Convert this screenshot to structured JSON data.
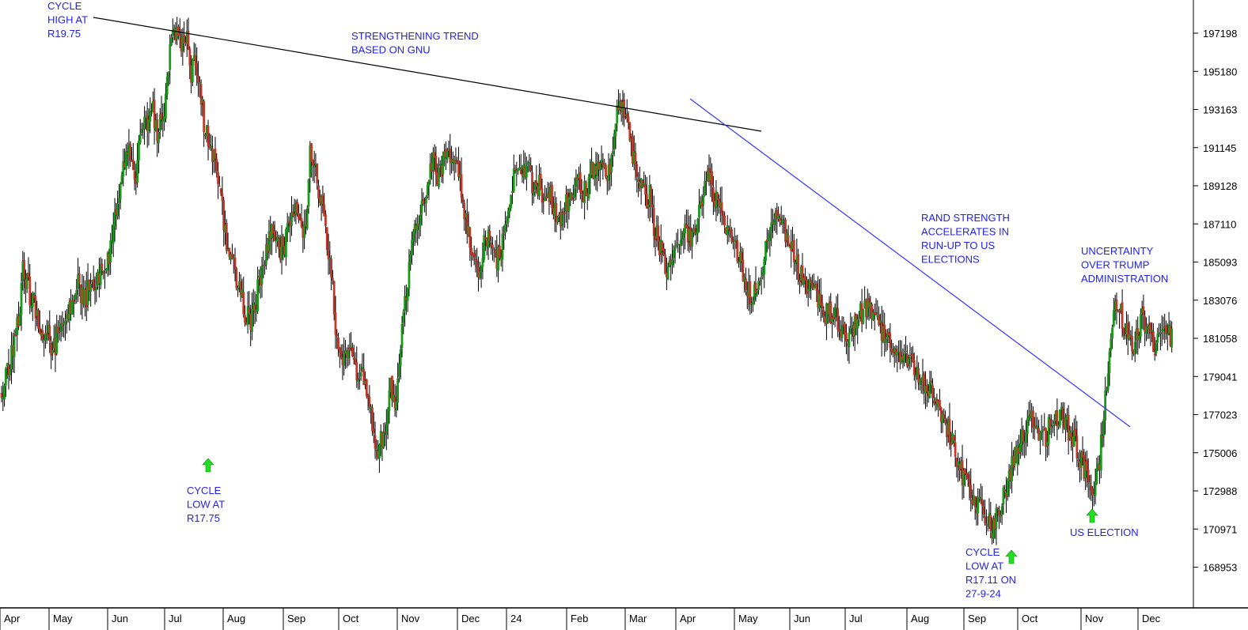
{
  "chart_data": {
    "type": "candlestick",
    "title": "",
    "xlabel": "",
    "ylabel": "",
    "ylim": [
      167900,
      198300
    ],
    "y_ticks": [
      "197198",
      "195180",
      "193163",
      "191145",
      "189128",
      "187110",
      "185093",
      "183076",
      "181058",
      "179041",
      "177023",
      "175006",
      "172988",
      "170971",
      "168953"
    ],
    "x_ticks": [
      "Apr",
      "May",
      "Jun",
      "Jul",
      "Aug",
      "Sep",
      "Oct",
      "Nov",
      "Dec",
      "24",
      "Feb",
      "Mar",
      "Apr",
      "May",
      "Jun",
      "Jul",
      "Aug",
      "Sep",
      "Oct",
      "Nov",
      "Dec"
    ],
    "grid": false,
    "colors": {
      "up": "#1a9a1a",
      "down": "#c0392b",
      "wick": "#000000",
      "annotation": "#2222ee",
      "arrow": "#22dd22",
      "trend_black": "#000000",
      "trend_blue": "#3333ff"
    },
    "price_path": [
      [
        0,
        178200
      ],
      [
        3,
        179200
      ],
      [
        6,
        180000
      ],
      [
        8,
        180300
      ],
      [
        10,
        181500
      ],
      [
        12,
        182000
      ],
      [
        15,
        184700
      ],
      [
        18,
        184000
      ],
      [
        21,
        183000
      ],
      [
        24,
        182400
      ],
      [
        27,
        181000
      ],
      [
        30,
        180600
      ],
      [
        33,
        181200
      ],
      [
        35,
        180300
      ],
      [
        38,
        180800
      ],
      [
        41,
        181800
      ],
      [
        44,
        182400
      ],
      [
        47,
        182300
      ],
      [
        50,
        183300
      ],
      [
        53,
        184100
      ],
      [
        56,
        183500
      ],
      [
        59,
        183100
      ],
      [
        62,
        183800
      ],
      [
        65,
        183900
      ],
      [
        68,
        184000
      ],
      [
        71,
        184500
      ],
      [
        74,
        184900
      ],
      [
        77,
        185600
      ],
      [
        80,
        187500
      ],
      [
        83,
        189100
      ],
      [
        86,
        190200
      ],
      [
        89,
        191000
      ],
      [
        92,
        190000
      ],
      [
        95,
        189800
      ],
      [
        98,
        191600
      ],
      [
        101,
        192400
      ],
      [
        104,
        192600
      ],
      [
        107,
        193200
      ],
      [
        110,
        192000
      ],
      [
        113,
        192600
      ],
      [
        116,
        193500
      ],
      [
        119,
        196400
      ],
      [
        122,
        197600
      ],
      [
        125,
        197000
      ],
      [
        128,
        196500
      ],
      [
        131,
        196700
      ],
      [
        134,
        195100
      ],
      [
        137,
        195900
      ],
      [
        140,
        194300
      ],
      [
        143,
        192500
      ],
      [
        146,
        191500
      ],
      [
        149,
        191000
      ],
      [
        152,
        189900
      ],
      [
        155,
        188500
      ],
      [
        158,
        186700
      ],
      [
        161,
        185400
      ],
      [
        164,
        185000
      ],
      [
        167,
        183800
      ],
      [
        170,
        183000
      ],
      [
        173,
        182300
      ],
      [
        176,
        181800
      ],
      [
        179,
        182800
      ],
      [
        182,
        184000
      ],
      [
        185,
        185000
      ],
      [
        188,
        186000
      ],
      [
        191,
        187000
      ],
      [
        194,
        186400
      ],
      [
        197,
        185700
      ],
      [
        200,
        186000
      ],
      [
        203,
        186900
      ],
      [
        206,
        187600
      ],
      [
        209,
        188000
      ],
      [
        212,
        186800
      ],
      [
        215,
        186500
      ],
      [
        218,
        191200
      ],
      [
        221,
        190300
      ],
      [
        224,
        189000
      ],
      [
        227,
        188000
      ],
      [
        230,
        186200
      ],
      [
        233,
        184900
      ],
      [
        236,
        181900
      ],
      [
        239,
        180200
      ],
      [
        242,
        179900
      ],
      [
        245,
        180500
      ],
      [
        248,
        180000
      ],
      [
        251,
        179000
      ],
      [
        254,
        179300
      ],
      [
        257,
        178600
      ],
      [
        260,
        177400
      ],
      [
        263,
        176100
      ],
      [
        266,
        175300
      ],
      [
        269,
        175700
      ],
      [
        272,
        177000
      ],
      [
        275,
        178500
      ],
      [
        278,
        177500
      ],
      [
        281,
        179400
      ],
      [
        284,
        182300
      ],
      [
        287,
        184000
      ],
      [
        290,
        186000
      ],
      [
        293,
        186800
      ],
      [
        296,
        187500
      ],
      [
        299,
        188700
      ],
      [
        302,
        189800
      ],
      [
        305,
        190600
      ],
      [
        308,
        189400
      ],
      [
        311,
        190000
      ],
      [
        314,
        191200
      ],
      [
        317,
        190600
      ],
      [
        320,
        190300
      ],
      [
        323,
        189700
      ],
      [
        326,
        188100
      ],
      [
        329,
        186900
      ],
      [
        332,
        185500
      ],
      [
        335,
        184600
      ],
      [
        338,
        185000
      ],
      [
        341,
        185900
      ],
      [
        344,
        186500
      ],
      [
        347,
        186000
      ],
      [
        350,
        185000
      ],
      [
        353,
        185800
      ],
      [
        356,
        186900
      ],
      [
        359,
        188100
      ],
      [
        362,
        189400
      ],
      [
        365,
        189800
      ],
      [
        368,
        190000
      ],
      [
        371,
        190200
      ],
      [
        374,
        189600
      ],
      [
        377,
        188900
      ],
      [
        380,
        189300
      ],
      [
        383,
        188600
      ],
      [
        386,
        189000
      ],
      [
        389,
        188400
      ],
      [
        392,
        187800
      ],
      [
        395,
        187500
      ],
      [
        398,
        187900
      ],
      [
        401,
        188400
      ],
      [
        404,
        188900
      ],
      [
        407,
        189300
      ],
      [
        410,
        189000
      ],
      [
        413,
        188800
      ],
      [
        416,
        189900
      ],
      [
        419,
        190300
      ],
      [
        422,
        189800
      ],
      [
        425,
        190700
      ],
      [
        428,
        189500
      ],
      [
        431,
        190200
      ],
      [
        434,
        192600
      ],
      [
        437,
        193500
      ],
      [
        440,
        192900
      ],
      [
        443,
        191900
      ],
      [
        446,
        190700
      ],
      [
        449,
        189800
      ],
      [
        452,
        189000
      ],
      [
        455,
        188500
      ],
      [
        458,
        188700
      ],
      [
        461,
        187100
      ],
      [
        464,
        186000
      ],
      [
        467,
        185700
      ],
      [
        470,
        184800
      ],
      [
        473,
        185400
      ],
      [
        476,
        186000
      ],
      [
        479,
        186400
      ],
      [
        482,
        187000
      ],
      [
        485,
        186500
      ],
      [
        488,
        186100
      ],
      [
        491,
        186700
      ],
      [
        494,
        188100
      ],
      [
        497,
        189300
      ],
      [
        500,
        189800
      ],
      [
        503,
        188600
      ],
      [
        506,
        188100
      ],
      [
        509,
        187500
      ],
      [
        512,
        186900
      ],
      [
        515,
        186400
      ],
      [
        518,
        185900
      ],
      [
        521,
        185400
      ],
      [
        524,
        184700
      ],
      [
        527,
        183900
      ],
      [
        530,
        183000
      ],
      [
        533,
        183700
      ],
      [
        536,
        184600
      ],
      [
        539,
        185500
      ],
      [
        542,
        186300
      ],
      [
        545,
        187000
      ],
      [
        548,
        187600
      ],
      [
        551,
        187100
      ],
      [
        554,
        186500
      ],
      [
        557,
        186000
      ],
      [
        560,
        185400
      ],
      [
        563,
        184800
      ],
      [
        566,
        184300
      ],
      [
        569,
        183900
      ],
      [
        572,
        183400
      ],
      [
        575,
        183300
      ],
      [
        578,
        182800
      ],
      [
        581,
        182600
      ],
      [
        584,
        182200
      ],
      [
        587,
        182500
      ],
      [
        590,
        182100
      ],
      [
        593,
        181700
      ],
      [
        596,
        181300
      ],
      [
        599,
        180900
      ],
      [
        602,
        181500
      ],
      [
        605,
        182200
      ],
      [
        608,
        182400
      ],
      [
        611,
        182800
      ],
      [
        614,
        182500
      ],
      [
        617,
        182000
      ],
      [
        620,
        181700
      ],
      [
        623,
        181400
      ],
      [
        626,
        181200
      ],
      [
        629,
        180900
      ],
      [
        632,
        180600
      ],
      [
        635,
        180300
      ],
      [
        638,
        180200
      ],
      [
        641,
        179900
      ],
      [
        644,
        179600
      ],
      [
        647,
        179300
      ],
      [
        650,
        178900
      ],
      [
        653,
        178500
      ],
      [
        656,
        178300
      ],
      [
        659,
        177800
      ],
      [
        662,
        177300
      ],
      [
        665,
        176900
      ],
      [
        668,
        176400
      ],
      [
        671,
        175700
      ],
      [
        674,
        175000
      ],
      [
        677,
        174300
      ],
      [
        680,
        173700
      ],
      [
        683,
        173200
      ],
      [
        686,
        172900
      ],
      [
        689,
        172400
      ],
      [
        692,
        171900
      ],
      [
        695,
        171500
      ],
      [
        698,
        171200
      ],
      [
        701,
        171100
      ],
      [
        704,
        171800
      ],
      [
        707,
        172600
      ],
      [
        710,
        173300
      ],
      [
        713,
        174100
      ],
      [
        716,
        174800
      ],
      [
        719,
        175400
      ],
      [
        722,
        176000
      ],
      [
        725,
        176400
      ],
      [
        728,
        176900
      ],
      [
        731,
        176600
      ],
      [
        734,
        176000
      ],
      [
        737,
        175700
      ],
      [
        740,
        176300
      ],
      [
        743,
        176900
      ],
      [
        746,
        177000
      ],
      [
        749,
        177200
      ],
      [
        752,
        176600
      ],
      [
        755,
        176000
      ],
      [
        758,
        175600
      ],
      [
        761,
        175100
      ],
      [
        764,
        174400
      ],
      [
        767,
        173800
      ],
      [
        770,
        173400
      ],
      [
        773,
        173200
      ],
      [
        776,
        174600
      ],
      [
        779,
        177000
      ],
      [
        782,
        179800
      ],
      [
        785,
        182000
      ],
      [
        788,
        183100
      ],
      [
        791,
        182300
      ],
      [
        794,
        181600
      ],
      [
        797,
        181000
      ],
      [
        800,
        180700
      ],
      [
        803,
        181400
      ],
      [
        806,
        182000
      ],
      [
        809,
        181600
      ],
      [
        812,
        181000
      ],
      [
        815,
        180600
      ],
      [
        818,
        181300
      ],
      [
        821,
        181800
      ],
      [
        824,
        181400
      ],
      [
        827,
        181000
      ]
    ],
    "trendlines": [
      {
        "name": "black-resistance",
        "from": [
          130,
          196800
        ],
        "to": [
          440,
          192100
        ]
      },
      {
        "name": "blue-resistance",
        "from": [
          438,
          193000
        ],
        "to": [
          690,
          176600
        ]
      }
    ],
    "annotations": [
      {
        "lines": [
          "CYCLE",
          "HIGH AT",
          "R19.75"
        ]
      },
      {
        "lines": [
          "STRENGTHENING TREND",
          "BASED ON GNU"
        ]
      },
      {
        "lines": [
          "CYCLE",
          "LOW AT",
          "R17.75"
        ]
      },
      {
        "lines": [
          "RAND STRENGTH",
          "ACCELERATES IN",
          "RUN-UP TO US",
          "ELECTIONS"
        ]
      },
      {
        "lines": [
          "UNCERTAINTY",
          "OVER TRUMP",
          "ADMINISTRATION"
        ]
      },
      {
        "lines": [
          "CYCLE",
          "LOW AT",
          "R17.11 ON",
          "27-9-24"
        ]
      },
      {
        "lines": [
          "US ELECTION"
        ]
      }
    ],
    "arrows": [
      {
        "name": "cycle-low-1-arrow"
      },
      {
        "name": "cycle-low-2-arrow"
      },
      {
        "name": "us-election-arrow"
      }
    ]
  }
}
